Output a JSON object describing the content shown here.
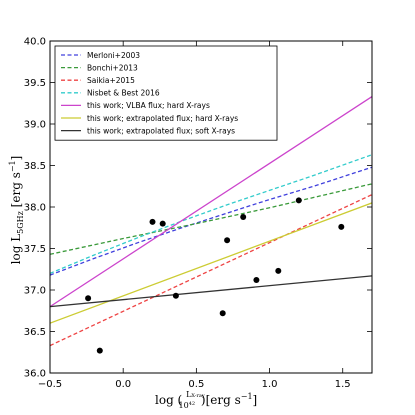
{
  "chart_data": {
    "type": "line",
    "xlabel_prefix": "log (",
    "xlabel_num": "L",
    "xlabel_num_sub": "X-ray",
    "xlabel_den": "10",
    "xlabel_den_sup": "42",
    "xlabel_suffix": ")[erg s",
    "xlabel_unit_sup": "−1",
    "xlabel_close": "]",
    "ylabel_prefix": "log L",
    "ylabel_sub": "5GHz",
    "ylabel_suffix": " [erg s",
    "ylabel_unit_sup": "−1",
    "ylabel_close": "]",
    "xlim": [
      -0.5,
      1.7
    ],
    "ylim": [
      36.0,
      40.0
    ],
    "xticks": [
      "−0.5",
      "0.0",
      "0.5",
      "1.0",
      "1.5"
    ],
    "xtick_values": [
      -0.5,
      0.0,
      0.5,
      1.0,
      1.5
    ],
    "yticks": [
      "36.0",
      "36.5",
      "37.0",
      "37.5",
      "38.0",
      "38.5",
      "39.0",
      "39.5",
      "40.0"
    ],
    "ytick_values": [
      36.0,
      36.5,
      37.0,
      37.5,
      38.0,
      38.5,
      39.0,
      39.5,
      40.0
    ],
    "legend_position": "top-left",
    "series": [
      {
        "name": "Merloni+2003",
        "color": "#4040dd",
        "style": "dashed",
        "x": [
          -0.5,
          -0.2,
          0.1,
          0.4,
          0.7,
          1.0,
          1.3,
          1.7
        ],
        "y": [
          37.18,
          37.38,
          37.57,
          37.75,
          37.92,
          38.09,
          38.25,
          38.48
        ]
      },
      {
        "name": "Bonchi+2013",
        "color": "#3a9a3a",
        "style": "dashed",
        "x": [
          -0.5,
          0.0,
          0.5,
          1.0,
          1.7
        ],
        "y": [
          37.43,
          37.62,
          37.8,
          37.99,
          38.28
        ]
      },
      {
        "name": "Saikia+2015",
        "color": "#ee4444",
        "style": "dashed",
        "x": [
          -0.5,
          1.7
        ],
        "y": [
          36.33,
          38.15
        ]
      },
      {
        "name": "Nisbet & Best 2016",
        "color": "#33cccc",
        "style": "dashed",
        "x": [
          -0.5,
          -0.2,
          0.1,
          0.4,
          0.7,
          1.0,
          1.3,
          1.7
        ],
        "y": [
          37.2,
          37.42,
          37.63,
          37.83,
          38.02,
          38.2,
          38.38,
          38.63
        ]
      },
      {
        "name": "this work; VLBA flux; hard X-rays",
        "color": "#cc44cc",
        "style": "solid",
        "x": [
          -0.5,
          1.7
        ],
        "y": [
          36.8,
          39.33
        ]
      },
      {
        "name": "this work; extrapolated flux; hard X-rays",
        "color": "#cccc33",
        "style": "solid",
        "x": [
          -0.5,
          1.7
        ],
        "y": [
          36.6,
          38.05
        ]
      },
      {
        "name": "this work; extrapolated flux; soft X-rays",
        "color": "#333333",
        "style": "solid",
        "x": [
          -0.5,
          1.7
        ],
        "y": [
          36.8,
          37.17
        ]
      }
    ],
    "points": {
      "x": [
        -0.24,
        -0.16,
        0.2,
        0.27,
        0.36,
        0.68,
        0.71,
        0.82,
        0.91,
        1.06,
        1.2,
        1.49
      ],
      "y": [
        36.9,
        36.27,
        37.82,
        37.8,
        36.93,
        36.72,
        37.6,
        37.88,
        37.12,
        37.23,
        38.08,
        37.76
      ]
    }
  }
}
